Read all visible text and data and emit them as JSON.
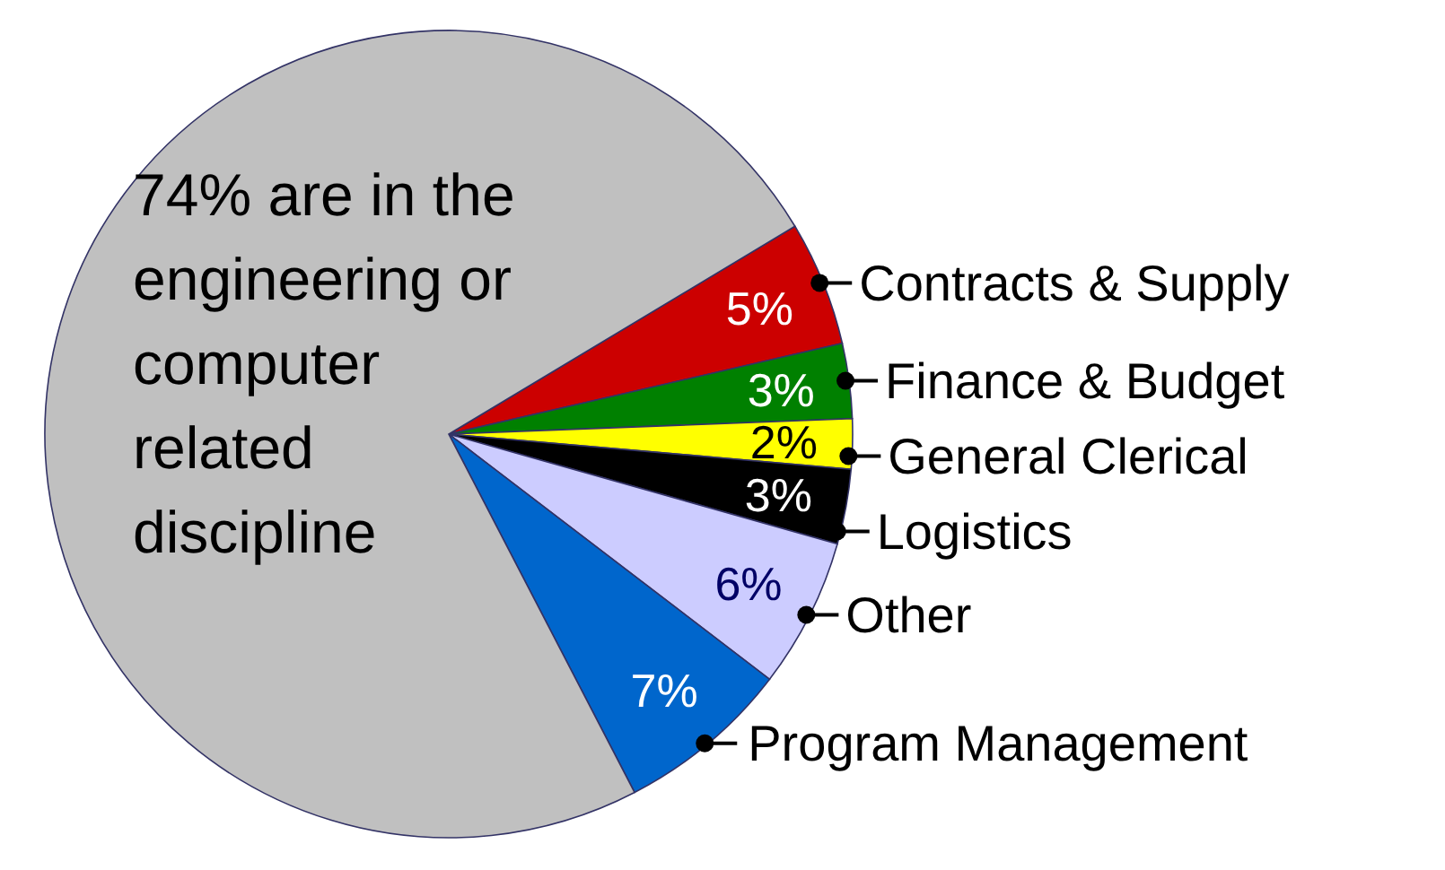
{
  "chart_data": {
    "type": "pie",
    "categories": [
      "Contracts & Supply",
      "Finance & Budget",
      "General Clerical",
      "Logistics",
      "Other",
      "Program Management",
      null
    ],
    "values": [
      5,
      3,
      2,
      3,
      6,
      7,
      74
    ],
    "colors": [
      "#cc0000",
      "#008000",
      "#ffff00",
      "#000000",
      "#ccccff",
      "#0066cc",
      "#c0c0c0"
    ],
    "value_labels": [
      "5%",
      "3%",
      "2%",
      "3%",
      "6%",
      "7%",
      null
    ],
    "annotations": [
      "74% are in the engineering or computer related discipline"
    ]
  }
}
